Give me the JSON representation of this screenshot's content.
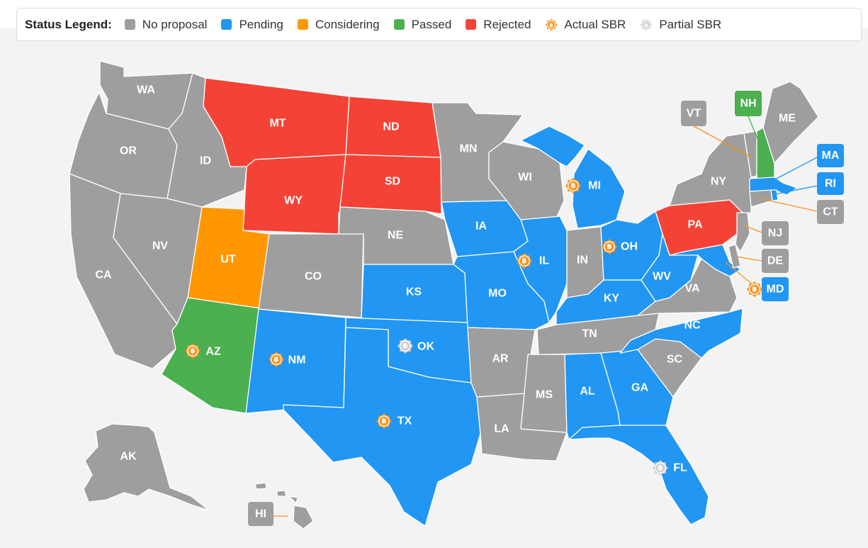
{
  "legend": {
    "title": "Status Legend:",
    "items": [
      {
        "label": "No proposal",
        "color": "#9e9e9e",
        "kind": "swatch"
      },
      {
        "label": "Pending",
        "color": "#2196f3",
        "kind": "swatch"
      },
      {
        "label": "Considering",
        "color": "#ff9800",
        "kind": "swatch"
      },
      {
        "label": "Passed",
        "color": "#4caf50",
        "kind": "swatch"
      },
      {
        "label": "Rejected",
        "color": "#f44336",
        "kind": "swatch"
      },
      {
        "label": "Actual SBR",
        "color": "#f7931a",
        "kind": "coin"
      },
      {
        "label": "Partial SBR",
        "color": "#cfcfcf",
        "kind": "coin"
      }
    ]
  },
  "states": {
    "WA": {
      "label": "WA",
      "status": "No proposal"
    },
    "OR": {
      "label": "OR",
      "status": "No proposal"
    },
    "CA": {
      "label": "CA",
      "status": "No proposal"
    },
    "NV": {
      "label": "NV",
      "status": "No proposal"
    },
    "ID": {
      "label": "ID",
      "status": "No proposal"
    },
    "MT": {
      "label": "MT",
      "status": "Rejected"
    },
    "WY": {
      "label": "WY",
      "status": "Rejected"
    },
    "UT": {
      "label": "UT",
      "status": "Considering"
    },
    "AZ": {
      "label": "AZ",
      "status": "Passed",
      "sbr": "Actual SBR"
    },
    "CO": {
      "label": "CO",
      "status": "No proposal"
    },
    "NM": {
      "label": "NM",
      "status": "Pending",
      "sbr": "Actual SBR"
    },
    "ND": {
      "label": "ND",
      "status": "Rejected"
    },
    "SD": {
      "label": "SD",
      "status": "Rejected"
    },
    "NE": {
      "label": "NE",
      "status": "No proposal"
    },
    "KS": {
      "label": "KS",
      "status": "Pending"
    },
    "OK": {
      "label": "OK",
      "status": "Pending",
      "sbr": "Partial SBR"
    },
    "TX": {
      "label": "TX",
      "status": "Pending",
      "sbr": "Actual SBR"
    },
    "MN": {
      "label": "MN",
      "status": "No proposal"
    },
    "IA": {
      "label": "IA",
      "status": "Pending"
    },
    "MO": {
      "label": "MO",
      "status": "Pending"
    },
    "AR": {
      "label": "AR",
      "status": "No proposal"
    },
    "LA": {
      "label": "LA",
      "status": "No proposal"
    },
    "WI": {
      "label": "WI",
      "status": "No proposal"
    },
    "IL": {
      "label": "IL",
      "status": "Pending",
      "sbr": "Actual SBR"
    },
    "MI": {
      "label": "MI",
      "status": "Pending",
      "sbr": "Actual SBR"
    },
    "IN": {
      "label": "IN",
      "status": "No proposal"
    },
    "OH": {
      "label": "OH",
      "status": "Pending",
      "sbr": "Actual SBR"
    },
    "KY": {
      "label": "KY",
      "status": "Pending"
    },
    "TN": {
      "label": "TN",
      "status": "No proposal"
    },
    "MS": {
      "label": "MS",
      "status": "No proposal"
    },
    "AL": {
      "label": "AL",
      "status": "Pending"
    },
    "GA": {
      "label": "GA",
      "status": "Pending"
    },
    "FL": {
      "label": "FL",
      "status": "Pending",
      "sbr": "Partial SBR"
    },
    "SC": {
      "label": "SC",
      "status": "No proposal"
    },
    "NC": {
      "label": "NC",
      "status": "Pending"
    },
    "VA": {
      "label": "VA",
      "status": "No proposal"
    },
    "WV": {
      "label": "WV",
      "status": "Pending"
    },
    "PA": {
      "label": "PA",
      "status": "Rejected"
    },
    "NY": {
      "label": "NY",
      "status": "No proposal"
    },
    "ME": {
      "label": "ME",
      "status": "No proposal"
    },
    "AK": {
      "label": "AK",
      "status": "No proposal"
    },
    "HI": {
      "label": "HI",
      "status": "No proposal"
    },
    "VT": {
      "label": "VT",
      "status": "No proposal"
    },
    "NH": {
      "label": "NH",
      "status": "Passed"
    },
    "MA": {
      "label": "MA",
      "status": "Pending"
    },
    "RI": {
      "label": "RI",
      "status": "Pending"
    },
    "CT": {
      "label": "CT",
      "status": "No proposal"
    },
    "NJ": {
      "label": "NJ",
      "status": "No proposal"
    },
    "DE": {
      "label": "DE",
      "status": "No proposal"
    },
    "MD": {
      "label": "MD",
      "status": "Pending",
      "sbr": "Actual SBR"
    }
  }
}
